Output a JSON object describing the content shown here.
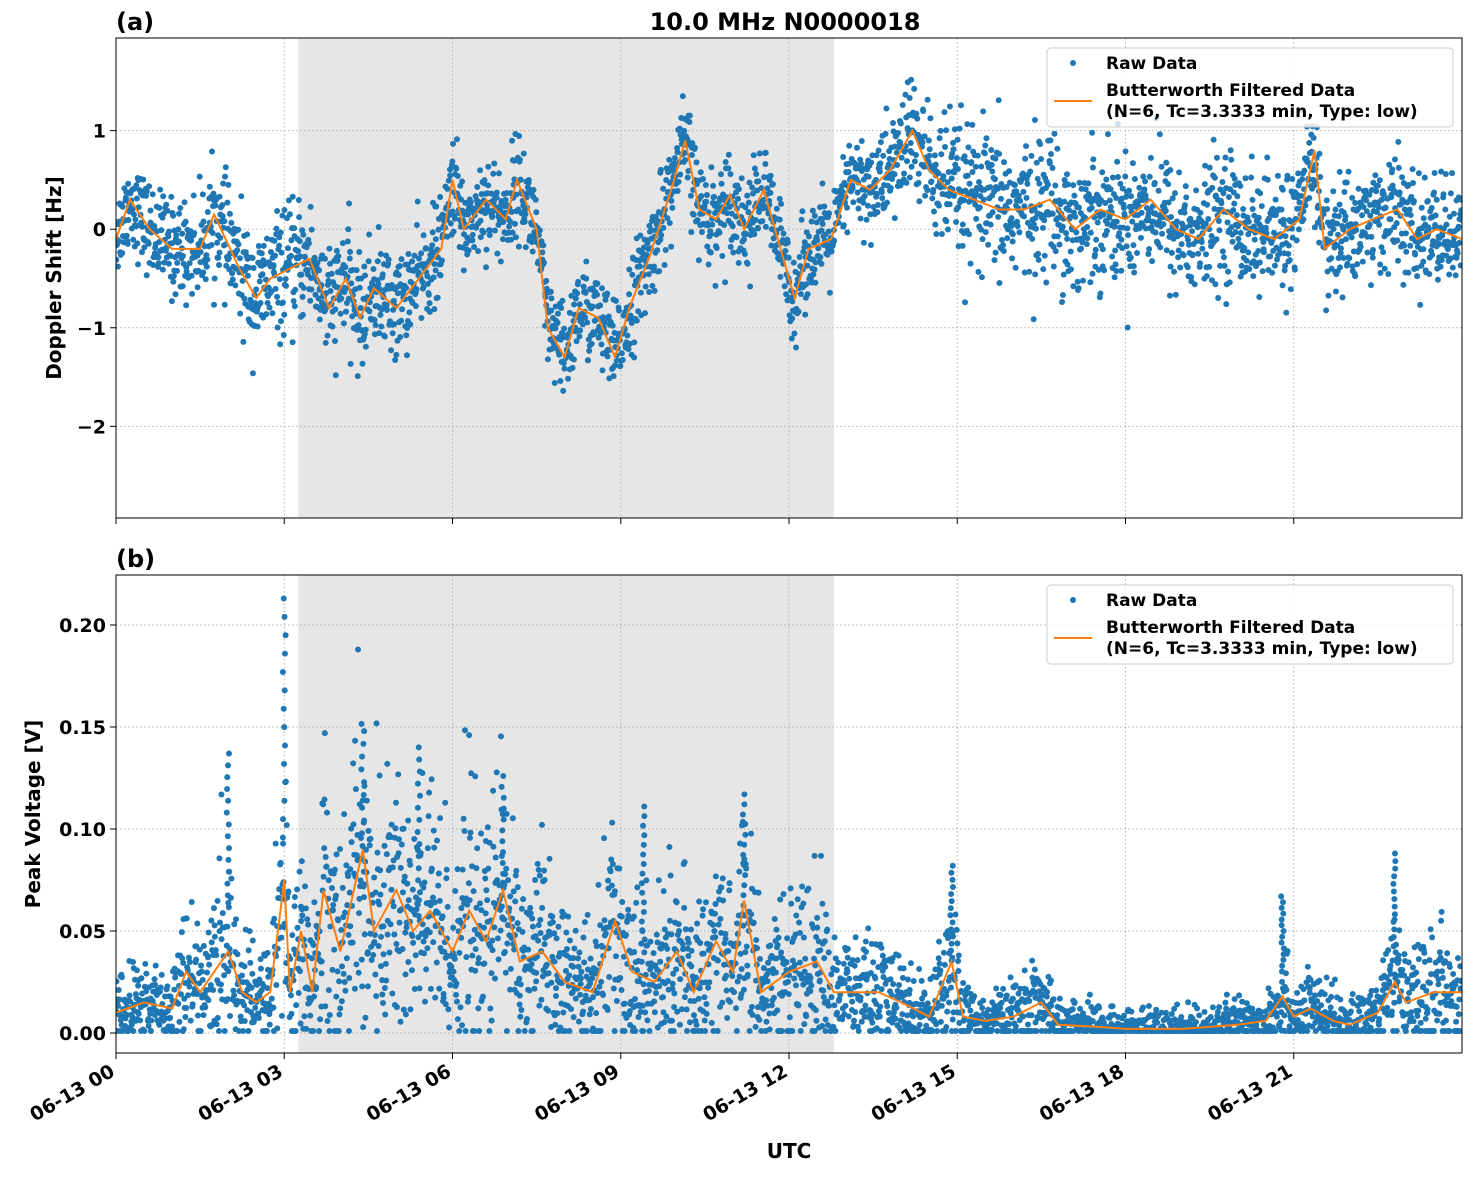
{
  "title": "10.0 MHz N0000018",
  "colors": {
    "raw": "#1f77b4",
    "filtered": "#ff7f0e",
    "shade": "#e6e6e6"
  },
  "legend": {
    "raw": "Raw Data",
    "filtered_line1": "Butterworth Filtered Data",
    "filtered_line2": "(N=6, Tc=3.3333 min, Type: low)",
    "placement": "upper-right"
  },
  "xaxis": {
    "label": "UTC",
    "range_hours": [
      0,
      24
    ],
    "ticks": [
      0,
      3,
      6,
      9,
      12,
      15,
      18,
      21
    ],
    "tick_labels": [
      "06-13 00",
      "06-13 03",
      "06-13 06",
      "06-13 09",
      "06-13 12",
      "06-13 15",
      "06-13 18",
      "06-13 21"
    ]
  },
  "shaded_interval_hours": [
    3.25,
    12.8
  ],
  "chart_data": [
    {
      "type": "scatter+line",
      "panel_label": "(a)",
      "ylabel": "Doppler Shift [Hz]",
      "ylim": [
        -2.93,
        1.94
      ],
      "yticks": [
        -2,
        -1,
        0,
        1
      ],
      "ytick_labels": [
        "−2",
        "−1",
        "0",
        "1"
      ],
      "grid": true,
      "filtered": {
        "hours": [
          0,
          0.25,
          0.6,
          1.0,
          1.5,
          1.75,
          2.2,
          2.5,
          2.75,
          3.1,
          3.45,
          3.8,
          4.1,
          4.35,
          4.6,
          5.0,
          5.4,
          5.8,
          6.0,
          6.2,
          6.6,
          6.95,
          7.15,
          7.5,
          7.7,
          8.0,
          8.25,
          8.6,
          8.9,
          9.15,
          9.5,
          9.9,
          10.15,
          10.4,
          10.7,
          10.95,
          11.2,
          11.55,
          11.85,
          12.1,
          12.35,
          12.75,
          13.1,
          13.45,
          13.8,
          14.2,
          14.5,
          14.85,
          15.3,
          15.75,
          16.2,
          16.65,
          17.1,
          17.55,
          18.0,
          18.45,
          18.9,
          19.3,
          19.75,
          20.2,
          20.65,
          21.1,
          21.37,
          21.55,
          22.0,
          22.4,
          22.85,
          23.2,
          23.55,
          24
        ],
        "values": [
          -0.1,
          0.3,
          0.0,
          -0.2,
          -0.2,
          0.15,
          -0.4,
          -0.7,
          -0.5,
          -0.4,
          -0.3,
          -0.8,
          -0.5,
          -0.9,
          -0.6,
          -0.8,
          -0.5,
          -0.2,
          0.5,
          0.0,
          0.3,
          0.1,
          0.5,
          0.0,
          -1.0,
          -1.3,
          -0.8,
          -0.9,
          -1.3,
          -0.8,
          -0.3,
          0.4,
          0.9,
          0.2,
          0.1,
          0.35,
          0.0,
          0.4,
          -0.2,
          -0.7,
          -0.2,
          -0.1,
          0.5,
          0.4,
          0.6,
          1.0,
          0.6,
          0.4,
          0.3,
          0.2,
          0.2,
          0.3,
          0.0,
          0.2,
          0.1,
          0.3,
          0.0,
          -0.1,
          0.2,
          0.0,
          -0.1,
          0.1,
          0.8,
          -0.2,
          0.0,
          0.1,
          0.2,
          -0.1,
          0.0,
          -0.1
        ]
      },
      "raw_spread": {
        "hours": [
          0,
          3,
          6,
          12,
          13,
          15,
          24
        ],
        "half_width": [
          0.35,
          0.5,
          0.4,
          0.4,
          0.35,
          0.6,
          0.45
        ]
      }
    },
    {
      "type": "scatter+line",
      "panel_label": "(b)",
      "ylabel": "Peak Voltage [V]",
      "ylim": [
        -0.0098,
        0.2245
      ],
      "yticks": [
        0,
        0.05,
        0.1,
        0.15,
        0.2
      ],
      "ytick_labels": [
        "0.00",
        "0.05",
        "0.10",
        "0.15",
        "0.20"
      ],
      "grid": true,
      "filtered": {
        "hours": [
          0,
          0.5,
          1.0,
          1.25,
          1.5,
          2.0,
          2.25,
          2.5,
          2.75,
          3.0,
          3.1,
          3.3,
          3.5,
          3.7,
          4.0,
          4.4,
          4.6,
          5.0,
          5.3,
          5.6,
          6.0,
          6.3,
          6.6,
          6.9,
          7.2,
          7.6,
          8.0,
          8.5,
          8.9,
          9.2,
          9.6,
          10.0,
          10.3,
          10.7,
          11.0,
          11.2,
          11.5,
          12.0,
          12.5,
          12.8,
          13.2,
          13.6,
          14.0,
          14.5,
          14.9,
          15.1,
          15.5,
          16.0,
          16.5,
          16.8,
          17.5,
          18.0,
          19.0,
          19.5,
          20.0,
          20.5,
          20.8,
          21.0,
          21.3,
          21.7,
          22.0,
          22.5,
          22.8,
          23.0,
          23.5,
          24
        ],
        "values": [
          0.01,
          0.015,
          0.012,
          0.03,
          0.02,
          0.04,
          0.02,
          0.015,
          0.02,
          0.075,
          0.02,
          0.05,
          0.02,
          0.07,
          0.04,
          0.09,
          0.05,
          0.07,
          0.05,
          0.06,
          0.04,
          0.06,
          0.045,
          0.07,
          0.035,
          0.04,
          0.025,
          0.02,
          0.055,
          0.03,
          0.025,
          0.04,
          0.02,
          0.045,
          0.03,
          0.065,
          0.02,
          0.03,
          0.035,
          0.02,
          0.02,
          0.02,
          0.015,
          0.008,
          0.035,
          0.008,
          0.006,
          0.008,
          0.015,
          0.004,
          0.003,
          0.002,
          0.002,
          0.003,
          0.004,
          0.006,
          0.018,
          0.008,
          0.012,
          0.006,
          0.004,
          0.01,
          0.025,
          0.015,
          0.02,
          0.02
        ]
      },
      "raw_peaks": {
        "hours": [
          2.0,
          3.0,
          4.4,
          5.4,
          6.9,
          9.4,
          11.2,
          14.9,
          20.8,
          22.8
        ],
        "values": [
          0.137,
          0.213,
          0.148,
          0.14,
          0.126,
          0.111,
          0.117,
          0.082,
          0.067,
          0.088
        ]
      }
    }
  ]
}
